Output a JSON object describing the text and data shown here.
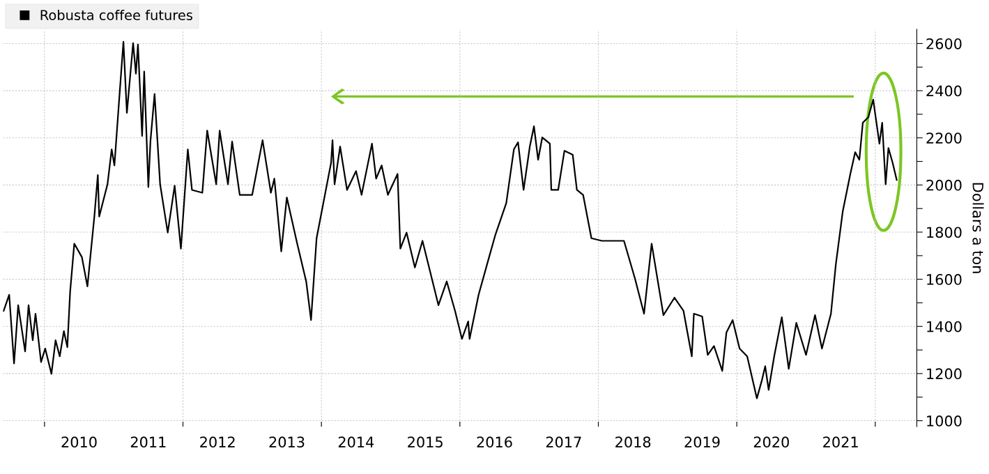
{
  "chart_data": {
    "type": "line",
    "ylabel": "Dollars a ton",
    "x": [
      2009.41,
      2009.49,
      2009.56,
      2009.62,
      2009.72,
      2009.77,
      2009.83,
      2009.87,
      2009.95,
      2010.01,
      2010.1,
      2010.16,
      2010.22,
      2010.28,
      2010.33,
      2010.37,
      2010.43,
      2010.54,
      2010.62,
      2010.72,
      2010.77,
      2010.79,
      2010.91,
      2010.97,
      2011.01,
      2011.08,
      2011.14,
      2011.19,
      2011.28,
      2011.32,
      2011.35,
      2011.41,
      2011.44,
      2011.5,
      2011.53,
      2011.59,
      2011.67,
      2011.78,
      2011.88,
      2011.97,
      2012.07,
      2012.13,
      2012.28,
      2012.35,
      2012.48,
      2012.53,
      2012.65,
      2012.71,
      2012.82,
      2013.0,
      2013.15,
      2013.27,
      2013.32,
      2013.42,
      2013.5,
      2013.65,
      2013.78,
      2013.85,
      2013.93,
      2014.14,
      2014.16,
      2014.19,
      2014.27,
      2014.37,
      2014.5,
      2014.58,
      2014.73,
      2014.79,
      2014.87,
      2014.96,
      2015.1,
      2015.14,
      2015.23,
      2015.35,
      2015.46,
      2015.69,
      2015.81,
      2015.93,
      2016.03,
      2016.12,
      2016.14,
      2016.27,
      2016.4,
      2016.51,
      2016.67,
      2016.78,
      2016.84,
      2016.92,
      2017.01,
      2017.07,
      2017.13,
      2017.19,
      2017.3,
      2017.32,
      2017.42,
      2017.51,
      2017.63,
      2017.69,
      2017.78,
      2017.9,
      2018.05,
      2018.24,
      2018.37,
      2018.53,
      2018.66,
      2018.77,
      2018.94,
      2019.1,
      2019.23,
      2019.35,
      2019.38,
      2019.5,
      2019.58,
      2019.67,
      2019.79,
      2019.85,
      2019.94,
      2020.04,
      2020.15,
      2020.29,
      2020.36,
      2020.41,
      2020.46,
      2020.54,
      2020.65,
      2020.75,
      2020.86,
      2021.0,
      2021.13,
      2021.23,
      2021.36,
      2021.43,
      2021.53,
      2021.64,
      2021.71,
      2021.77,
      2021.82,
      2021.9,
      2021.97,
      2022.06,
      2022.1,
      2022.15,
      2022.19,
      2022.25,
      2022.31
    ],
    "series": [
      {
        "name": "Robusta coffee futures",
        "color": "#000000",
        "values": [
          1466,
          1534,
          1243,
          1490,
          1294,
          1490,
          1341,
          1454,
          1249,
          1306,
          1199,
          1341,
          1273,
          1380,
          1312,
          1546,
          1751,
          1694,
          1570,
          1866,
          2042,
          1866,
          2003,
          2151,
          2083,
          2368,
          2608,
          2306,
          2602,
          2472,
          2596,
          2208,
          2481,
          1991,
          2184,
          2386,
          2003,
          1798,
          1997,
          1730,
          2151,
          1979,
          1967,
          2231,
          2003,
          2231,
          2003,
          2184,
          1958,
          1958,
          2190,
          1967,
          2027,
          1718,
          1947,
          1751,
          1591,
          1427,
          1774,
          2095,
          2190,
          2003,
          2163,
          1979,
          2059,
          1958,
          2175,
          2027,
          2083,
          1958,
          2047,
          1730,
          1798,
          1650,
          1763,
          1490,
          1591,
          1466,
          1347,
          1421,
          1347,
          1534,
          1671,
          1786,
          1923,
          2151,
          2181,
          1979,
          2163,
          2249,
          2107,
          2202,
          2175,
          1979,
          1979,
          2145,
          2128,
          1979,
          1958,
          1774,
          1763,
          1763,
          1763,
          1602,
          1454,
          1751,
          1448,
          1522,
          1466,
          1273,
          1454,
          1442,
          1279,
          1317,
          1211,
          1374,
          1427,
          1306,
          1273,
          1095,
          1169,
          1231,
          1131,
          1273,
          1439,
          1220,
          1415,
          1279,
          1448,
          1306,
          1454,
          1662,
          1887,
          2047,
          2139,
          2107,
          2264,
          2288,
          2362,
          2175,
          2264,
          2003,
          2157,
          2095,
          2021
        ]
      }
    ],
    "xlim": [
      2009.4,
      2022.6
    ],
    "xticks": [
      {
        "value": 2010,
        "label": null
      },
      {
        "value": 2012,
        "label": null
      },
      {
        "value": 2014,
        "label": null
      },
      {
        "value": 2016,
        "label": null
      },
      {
        "value": 2018,
        "label": null
      },
      {
        "value": 2020,
        "label": null
      },
      {
        "value": 2022,
        "label": null
      },
      {
        "value": 2010.5,
        "label": "2010"
      },
      {
        "value": 2011.5,
        "label": "2011"
      },
      {
        "value": 2012.5,
        "label": "2012"
      },
      {
        "value": 2013.5,
        "label": "2013"
      },
      {
        "value": 2014.5,
        "label": "2014"
      },
      {
        "value": 2015.5,
        "label": "2015"
      },
      {
        "value": 2016.5,
        "label": "2016"
      },
      {
        "value": 2017.5,
        "label": "2017"
      },
      {
        "value": 2018.5,
        "label": "2018"
      },
      {
        "value": 2019.5,
        "label": "2019"
      },
      {
        "value": 2020.5,
        "label": "2020"
      },
      {
        "value": 2021.5,
        "label": "2021"
      }
    ],
    "ylim": [
      975,
      2660
    ],
    "yticks": [
      1000,
      {
        "value": 1100,
        "label": null
      },
      1200,
      {
        "value": 1300,
        "label": null
      },
      1400,
      {
        "value": 1500,
        "label": null
      },
      1600,
      {
        "value": 1700,
        "label": null
      },
      1800,
      {
        "value": 1900,
        "label": null
      },
      2000,
      {
        "value": 2100,
        "label": null
      },
      2200,
      {
        "value": 2300,
        "label": null
      },
      2400,
      {
        "value": 2500,
        "label": null
      },
      2600
    ],
    "grid": true,
    "legend": "top left",
    "marker": "none",
    "line_style": "solid"
  }
}
